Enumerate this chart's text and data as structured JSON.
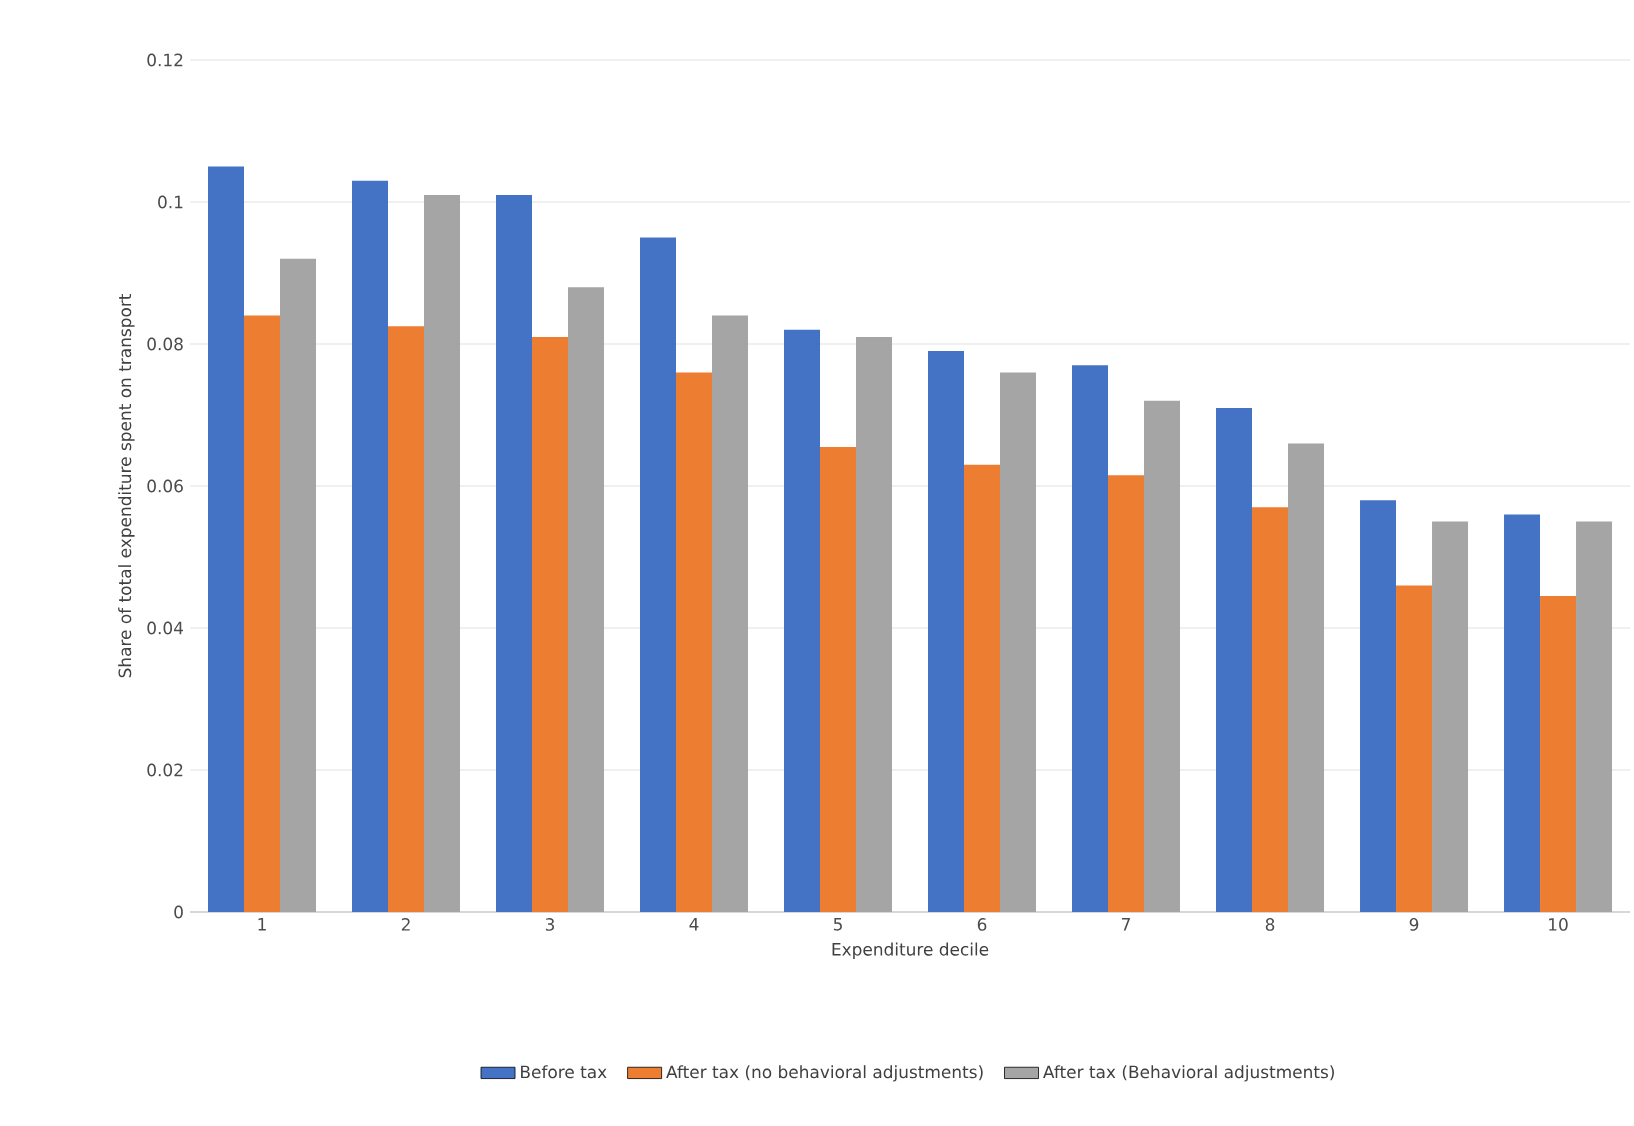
{
  "chart_data": {
    "type": "bar",
    "xlabel": "Expenditure decile",
    "ylabel": "Share of total expenditure spent on transport",
    "categories": [
      "1",
      "2",
      "3",
      "4",
      "5",
      "6",
      "7",
      "8",
      "9",
      "10"
    ],
    "series": [
      {
        "name": "Before tax",
        "color": "#4472c4",
        "values": [
          0.105,
          0.103,
          0.101,
          0.095,
          0.082,
          0.079,
          0.077,
          0.071,
          0.058,
          0.056
        ]
      },
      {
        "name": "After tax (no behavioral adjustments)",
        "color": "#ed7d31",
        "values": [
          0.084,
          0.0825,
          0.081,
          0.076,
          0.0655,
          0.063,
          0.0615,
          0.057,
          0.046,
          0.0445
        ]
      },
      {
        "name": "After tax (Behavioral adjustments)",
        "color": "#a5a5a5",
        "values": [
          0.092,
          0.101,
          0.088,
          0.084,
          0.081,
          0.076,
          0.072,
          0.066,
          0.055,
          0.055
        ]
      }
    ],
    "ylim": [
      0,
      0.12
    ],
    "yticks": [
      0,
      0.02,
      0.04,
      0.06,
      0.08,
      0.1,
      0.12
    ],
    "grid": "y",
    "legend": "bottom"
  }
}
